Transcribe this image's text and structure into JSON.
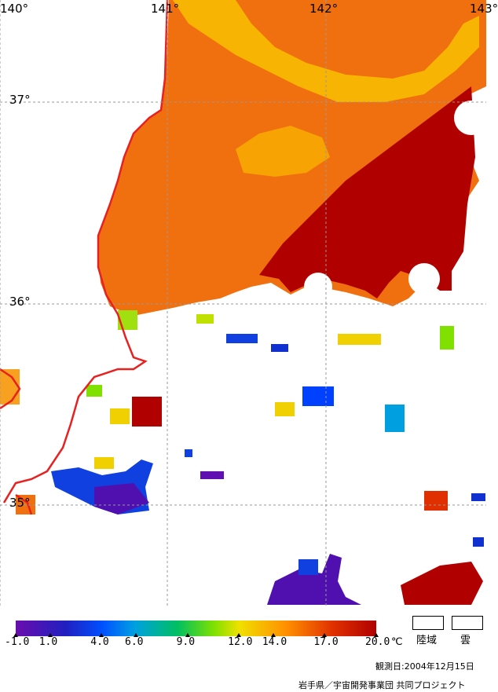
{
  "map": {
    "longitudes": [
      "140°",
      "141°",
      "142°",
      "143°"
    ],
    "latitudes": [
      "37°",
      "36°",
      "35°"
    ]
  },
  "legend": {
    "ticks": [
      "-1.0",
      "1.0",
      "4.0",
      "6.0",
      "9.0",
      "12.0",
      "14.0",
      "17.0",
      "20.0"
    ],
    "tick_values": [
      -1.0,
      1.0,
      4.0,
      6.0,
      9.0,
      12.0,
      14.0,
      17.0,
      20.0
    ],
    "unit": "℃",
    "land_label": "陸域",
    "cloud_label": "雲"
  },
  "observation_date": "観測日:2004年12月15日",
  "credit": "岩手県／宇宙開発事業団 共同プロジェクト",
  "colors": {
    "coast": "#e82020",
    "warm": "#b00000",
    "orange": "#f07010",
    "yellow": "#f8c000"
  }
}
